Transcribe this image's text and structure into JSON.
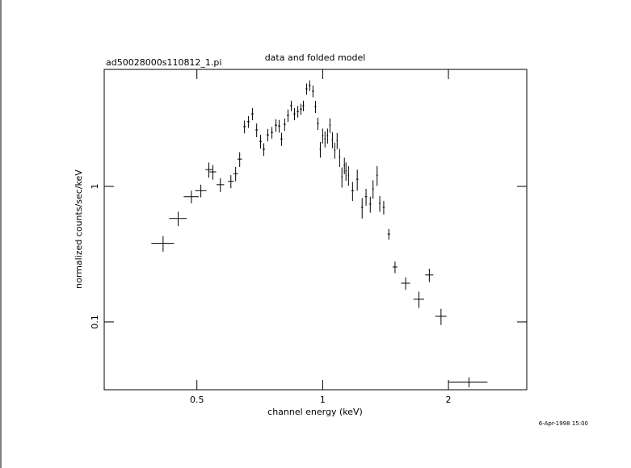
{
  "chart_data": {
    "type": "scatter",
    "title": "data and folded model",
    "subtitle": "ad50028000s110812_1.pi",
    "x_label": "channel energy (keV)",
    "y_label": "normalized counts/sec/keV",
    "timestamp": "6-Apr-1998 15:00",
    "log_x": true,
    "log_y": true,
    "color": "#000000",
    "xlim": [
      0.3,
      3.08
    ],
    "ylim": [
      0.0316,
      7.3
    ],
    "xticks": [
      0.5,
      1,
      2
    ],
    "yticks": [
      0.1,
      1
    ],
    "x": [
      0.415,
      0.451,
      0.485,
      0.511,
      0.534,
      0.546,
      0.569,
      0.603,
      0.619,
      0.633,
      0.65,
      0.664,
      0.679,
      0.695,
      0.71,
      0.723,
      0.739,
      0.756,
      0.773,
      0.787,
      0.797,
      0.811,
      0.826,
      0.841,
      0.856,
      0.872,
      0.887,
      0.899,
      0.915,
      0.931,
      0.948,
      0.961,
      0.974,
      0.987,
      1.0,
      1.013,
      1.027,
      1.041,
      1.055,
      1.069,
      1.083,
      1.098,
      1.112,
      1.127,
      1.137,
      1.153,
      1.179,
      1.21,
      1.243,
      1.27,
      1.3,
      1.32,
      1.35,
      1.37,
      1.4,
      1.44,
      1.49,
      1.58,
      1.7,
      1.8,
      1.92,
      2.24
    ],
    "xerr": [
      0.026,
      0.022,
      0.02,
      0.016,
      0.01,
      0.01,
      0.012,
      0.01,
      0.008,
      0.008,
      0.005,
      0.005,
      0.005,
      0.005,
      0.005,
      0.005,
      0.005,
      0.005,
      0.005,
      0.005,
      0.005,
      0.005,
      0.005,
      0.005,
      0.005,
      0.005,
      0.005,
      0.005,
      0.005,
      0.005,
      0.005,
      0.005,
      0.005,
      0.004,
      0.004,
      0.004,
      0.004,
      0.004,
      0.004,
      0.004,
      0.004,
      0.004,
      0.004,
      0.004,
      0.004,
      0.004,
      0.008,
      0.008,
      0.007,
      0.008,
      0.007,
      0.006,
      0.006,
      0.006,
      0.008,
      0.01,
      0.02,
      0.04,
      0.05,
      0.04,
      0.06,
      0.24
    ],
    "values": [
      0.38,
      0.58,
      0.84,
      0.93,
      1.33,
      1.28,
      1.03,
      1.09,
      1.24,
      1.59,
      2.76,
      3.0,
      3.43,
      2.61,
      2.15,
      1.88,
      2.4,
      2.5,
      2.83,
      2.79,
      2.24,
      2.87,
      3.34,
      3.94,
      3.43,
      3.57,
      3.72,
      3.94,
      5.25,
      5.55,
      5.04,
      3.88,
      2.91,
      1.88,
      2.37,
      2.24,
      2.37,
      2.83,
      2.21,
      1.85,
      2.18,
      1.64,
      1.18,
      1.43,
      1.3,
      1.21,
      0.93,
      1.13,
      0.7,
      0.84,
      0.74,
      0.96,
      1.21,
      0.75,
      0.7,
      0.445,
      0.254,
      0.193,
      0.147,
      0.222,
      0.11,
      0.036
    ],
    "yerr": [
      0.05,
      0.07,
      0.09,
      0.1,
      0.17,
      0.16,
      0.12,
      0.12,
      0.15,
      0.2,
      0.3,
      0.3,
      0.35,
      0.3,
      0.25,
      0.2,
      0.25,
      0.25,
      0.3,
      0.3,
      0.25,
      0.3,
      0.35,
      0.35,
      0.35,
      0.35,
      0.35,
      0.35,
      0.5,
      0.5,
      0.5,
      0.4,
      0.3,
      0.25,
      0.3,
      0.3,
      0.3,
      0.35,
      0.3,
      0.25,
      0.3,
      0.25,
      0.2,
      0.2,
      0.2,
      0.2,
      0.15,
      0.2,
      0.12,
      0.12,
      0.1,
      0.15,
      0.2,
      0.1,
      0.08,
      0.04,
      0.025,
      0.02,
      0.02,
      0.025,
      0.015,
      0.003
    ]
  }
}
